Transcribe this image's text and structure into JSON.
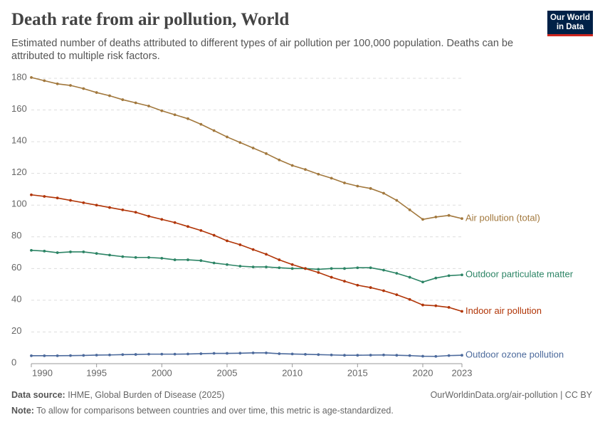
{
  "chart_data": {
    "type": "line",
    "title": "Death rate from air pollution, World",
    "subtitle": "Estimated number of deaths attributed to different types of air pollution per 100,000 population. Deaths can be attributed to multiple risk factors.",
    "logo": "Our World in Data",
    "source_label": "Data source:",
    "source": "IHME, Global Burden of Disease (2025)",
    "url": "OurWorldinData.org/air-pollution | CC BY",
    "note_label": "Note:",
    "note": "To allow for comparisons between countries and over time, this metric is age-standardized.",
    "x": [
      1990,
      1991,
      1992,
      1993,
      1994,
      1995,
      1996,
      1997,
      1998,
      1999,
      2000,
      2001,
      2002,
      2003,
      2004,
      2005,
      2006,
      2007,
      2008,
      2009,
      2010,
      2011,
      2012,
      2013,
      2014,
      2015,
      2016,
      2017,
      2018,
      2019,
      2020,
      2021,
      2022,
      2023
    ],
    "xlim": [
      1990,
      2023
    ],
    "xticks": [
      1990,
      1995,
      2000,
      2005,
      2010,
      2015,
      2020,
      2023
    ],
    "ylim": [
      0,
      180
    ],
    "yticks": [
      0,
      20,
      40,
      60,
      80,
      100,
      120,
      140,
      160,
      180
    ],
    "grid": true,
    "series": [
      {
        "name": "Air pollution (total)",
        "color": "#a2783d",
        "values": [
          180.5,
          178.5,
          176.5,
          175.5,
          173.5,
          171,
          169,
          166.5,
          164.5,
          162.5,
          159.5,
          157,
          154.5,
          151,
          147,
          143,
          139.5,
          136,
          132.5,
          128.5,
          125,
          122.5,
          119.5,
          117,
          114,
          112,
          110.5,
          107.5,
          103,
          97,
          91,
          92.5,
          93.5,
          91.5
        ]
      },
      {
        "name": "Outdoor particulate matter",
        "color": "#2c8465",
        "values": [
          71.5,
          71,
          70,
          70.5,
          70.5,
          69.5,
          68.5,
          67.5,
          67,
          67,
          66.5,
          65.5,
          65.5,
          65,
          63.5,
          62.5,
          61.5,
          61,
          61,
          60.5,
          60,
          60,
          59.5,
          60,
          60,
          60.5,
          60.5,
          59,
          57,
          54.5,
          51.5,
          54,
          55.5,
          56
        ]
      },
      {
        "name": "Indoor air pollution",
        "color": "#b13507",
        "values": [
          106.5,
          105.5,
          104.5,
          103,
          101.5,
          100,
          98.5,
          97,
          95.5,
          93,
          91,
          89,
          86.5,
          84,
          81,
          77.5,
          75,
          72,
          69,
          65.5,
          62.5,
          60,
          57.5,
          54.5,
          52,
          49.5,
          48,
          46,
          43.5,
          40.5,
          37,
          36.5,
          35.5,
          33
        ]
      },
      {
        "name": "Outdoor ozone pollution",
        "color": "#4c6a9c",
        "values": [
          5,
          5,
          5,
          5.1,
          5.2,
          5.4,
          5.5,
          5.7,
          5.8,
          6,
          6,
          6,
          6.1,
          6.3,
          6.5,
          6.5,
          6.6,
          6.8,
          6.8,
          6.3,
          6.1,
          5.9,
          5.7,
          5.5,
          5.3,
          5.3,
          5.4,
          5.5,
          5.3,
          5.1,
          4.7,
          4.6,
          5.1,
          5.3
        ]
      }
    ]
  }
}
